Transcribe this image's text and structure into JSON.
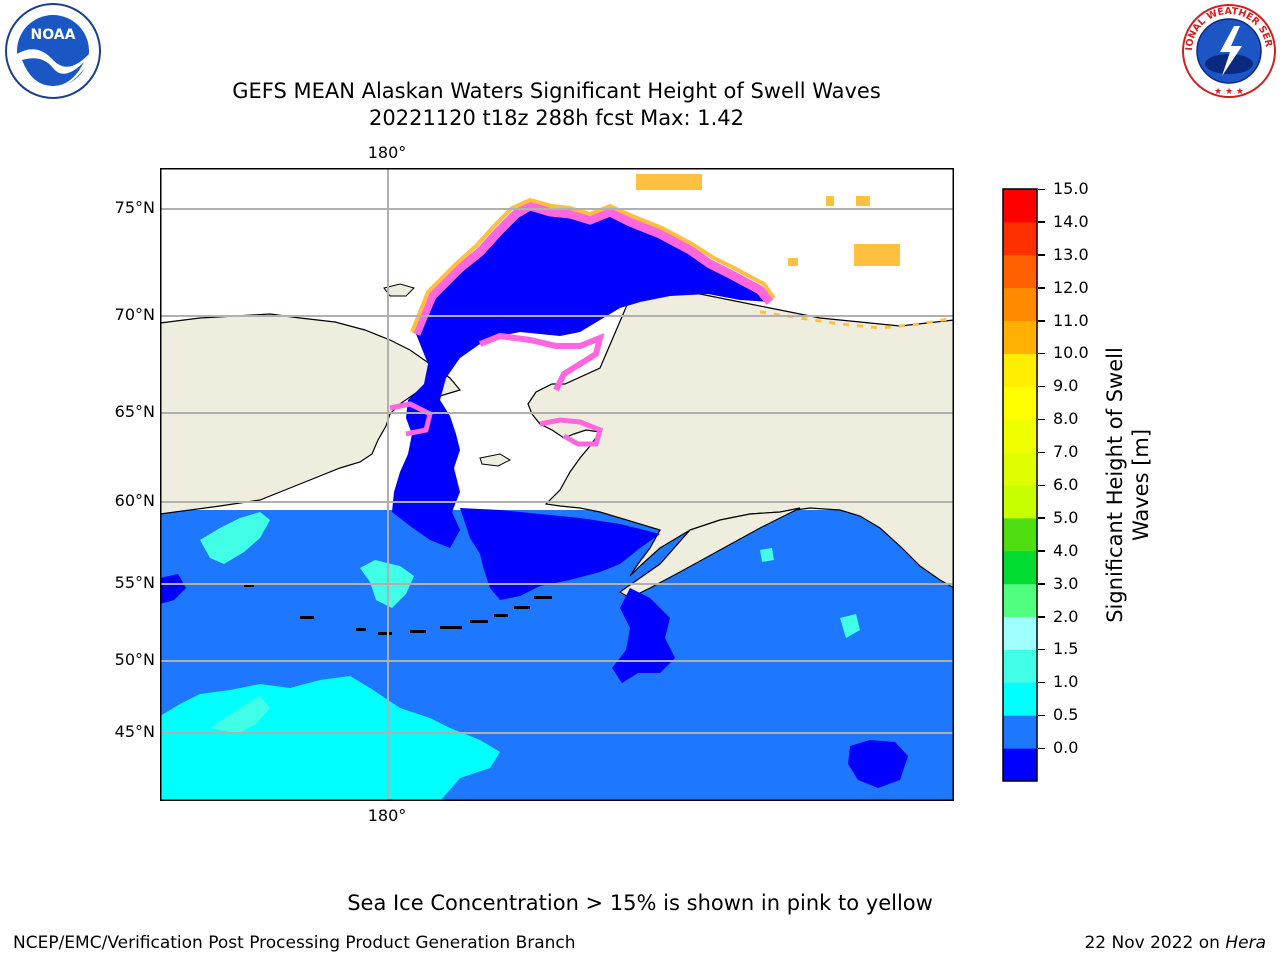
{
  "title_line1": "GEFS MEAN Alaskan Waters Significant Height of Swell Waves",
  "title_line2": "20221120 t18z 288h fcst   Max: 1.42",
  "lon_label_top": "180°",
  "lon_label_bottom": "180°",
  "lat_labels": [
    "75°N",
    "70°N",
    "65°N",
    "60°N",
    "55°N",
    "50°N",
    "45°N"
  ],
  "colorbar": {
    "title_line1": "Significant Height of Swell",
    "title_line2": "Waves [m]",
    "ticks": [
      "15.0",
      "14.0",
      "13.0",
      "12.0",
      "11.0",
      "10.0",
      "9.0",
      "8.0",
      "7.0",
      "6.0",
      "5.0",
      "4.0",
      "3.0",
      "2.0",
      "1.5",
      "1.0",
      "0.5",
      "0.0"
    ],
    "colors": [
      "#0000ff",
      "#1e78ff",
      "#00ffff",
      "#40ffe6",
      "#a0ffff",
      "#50ff80",
      "#00dd30",
      "#50dd10",
      "#c8ff00",
      "#dfff00",
      "#f0ff00",
      "#ffff00",
      "#ffee00",
      "#ffb000",
      "#ff8a00",
      "#ff6000",
      "#ff3000",
      "#ff0000"
    ]
  },
  "map_colors": {
    "ocean": "#1e78ff",
    "deep_blue": "#0000ff",
    "cyan": "#00ffff",
    "light_cyan": "#40ffe6",
    "land": "#efedde",
    "ice_pink": "#ff66e0",
    "ice_yellow": "#ffc040",
    "grid": "#b0b0b0"
  },
  "logos": {
    "noaa_text": "NOAA",
    "nws_text": "NATIONAL WEATHER SERVICE"
  },
  "footer": {
    "note": "Sea Ice Concentration > 15% is shown in pink to yellow",
    "left": "NCEP/EMC/Verification Post Processing Product Generation Branch",
    "right_date": "22 Nov 2022 on ",
    "right_machine": "Hera"
  }
}
